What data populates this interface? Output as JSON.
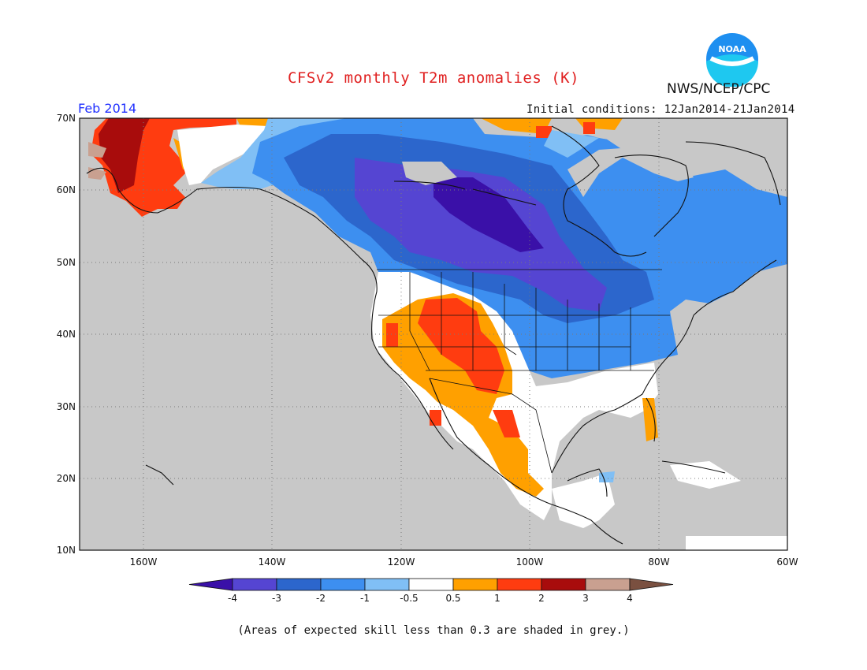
{
  "header": {
    "title": "CFSv2 monthly T2m anomalies (K)",
    "organization": "NWS/NCEP/CPC",
    "valid_month": "Feb 2014",
    "initial_conditions": "Initial conditions: 12Jan2014-21Jan2014",
    "logo_text": "NOAA"
  },
  "map": {
    "lat_labels": [
      "70N",
      "60N",
      "50N",
      "40N",
      "30N",
      "20N",
      "10N"
    ],
    "lon_labels": [
      "160W",
      "140W",
      "120W",
      "100W",
      "80W",
      "60W"
    ],
    "region": "North America",
    "lat_range": [
      10,
      70
    ],
    "lon_range": [
      -170,
      -60
    ],
    "grid": "dotted",
    "skill_mask_color": "#c8c8c8"
  },
  "legend": {
    "labels": [
      "-4",
      "-3",
      "-2",
      "-1",
      "-0.5",
      "0.5",
      "1",
      "2",
      "3",
      "4"
    ],
    "colors": [
      "#3a10a8",
      "#5545d2",
      "#2c66cc",
      "#3d8ff0",
      "#80bff5",
      "#ffffff",
      "#ffa000",
      "#ff3c10",
      "#a80c0c",
      "#c9a090",
      "#7a5040"
    ]
  },
  "footnote": "(Areas of expected skill less than 0.3 are shaded in grey.)"
}
